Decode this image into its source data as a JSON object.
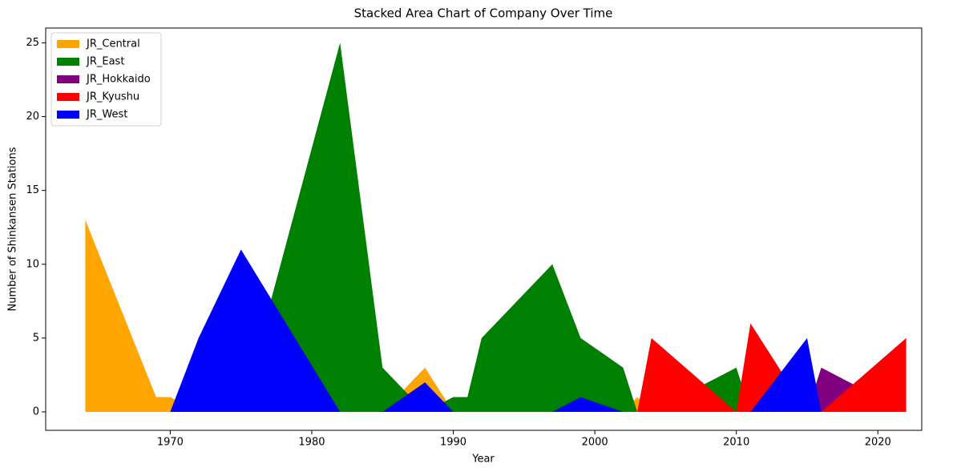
{
  "chart_data": {
    "type": "area",
    "title": "Stacked Area Chart of Company Over Time",
    "x_label": "Year",
    "y_label": "Number of Shinkansen Stations",
    "x": [
      1964,
      1969,
      1970,
      1972,
      1975,
      1982,
      1985,
      1988,
      1990,
      1991,
      1992,
      1997,
      1999,
      2002,
      2003,
      2004,
      2010,
      2011,
      2015,
      2016,
      2022
    ],
    "series": [
      {
        "name": "JR_Central",
        "color": "#ffa500",
        "values": [
          13,
          1,
          1,
          0,
          0,
          0,
          0,
          3,
          0,
          0,
          0,
          0,
          0,
          0,
          1,
          0,
          0,
          0,
          0,
          0,
          0
        ]
      },
      {
        "name": "JR_East",
        "color": "#008000",
        "values": [
          0,
          0,
          0,
          0,
          0,
          25,
          3,
          0,
          1,
          1,
          5,
          10,
          5,
          3,
          0,
          0,
          3,
          0,
          0,
          0,
          0
        ]
      },
      {
        "name": "JR_Hokkaido",
        "color": "#800080",
        "values": [
          0,
          0,
          0,
          0,
          0,
          0,
          0,
          0,
          0,
          0,
          0,
          0,
          0,
          0,
          0,
          0,
          0,
          0,
          0,
          3,
          0
        ]
      },
      {
        "name": "JR_Kyushu",
        "color": "#ff0000",
        "values": [
          0,
          0,
          0,
          0,
          0,
          0,
          0,
          0,
          0,
          0,
          0,
          0,
          0,
          0,
          0,
          5,
          0,
          6,
          0,
          0,
          5
        ]
      },
      {
        "name": "JR_West",
        "color": "#0000ff",
        "values": [
          0,
          0,
          0,
          5,
          11,
          0,
          0,
          2,
          0,
          0,
          0,
          0,
          1,
          0,
          0,
          0,
          0,
          0,
          5,
          0,
          0
        ]
      }
    ],
    "xlim": [
      1961.2,
      2023.1
    ],
    "ylim": [
      -1.25,
      26
    ],
    "xticks": [
      1970,
      1980,
      1990,
      2000,
      2010,
      2020
    ],
    "yticks": [
      0,
      5,
      10,
      15,
      20,
      25
    ],
    "legend": "upper left"
  }
}
